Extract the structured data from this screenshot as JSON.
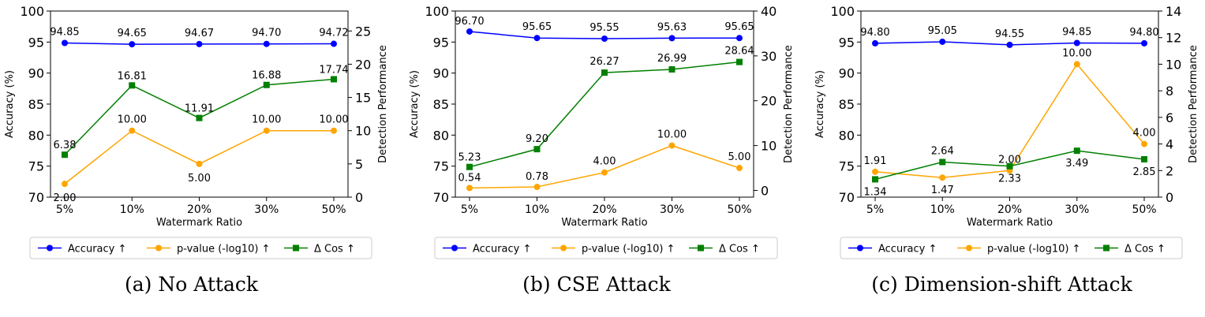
{
  "colors": {
    "accuracy": "#0000ff",
    "pvalue": "#ffa500",
    "cos": "#008000"
  },
  "chart_data": [
    {
      "type": "line",
      "caption": "(a) No Attack",
      "categories": [
        "5%",
        "10%",
        "20%",
        "30%",
        "50%"
      ],
      "xlabel": "Watermark Ratio",
      "ylabel": "Accuracy (%)",
      "y2label": "Detection Performance",
      "ylim": [
        70,
        100
      ],
      "yticks": [
        "70",
        "75",
        "80",
        "85",
        "90",
        "95",
        "100"
      ],
      "y2lim": [
        0,
        28
      ],
      "y2ticks": [
        "0",
        "5",
        "10",
        "15",
        "20",
        "25"
      ],
      "series": [
        {
          "name": "Accuracy ↑",
          "axis": "left",
          "marker": "circle",
          "values": [
            94.85,
            94.65,
            94.67,
            94.7,
            94.72
          ],
          "labels": [
            "94.85",
            "94.65",
            "94.67",
            "94.70",
            "94.72"
          ]
        },
        {
          "name": "p-value (-log10) ↑",
          "axis": "right",
          "marker": "circle",
          "values": [
            2.0,
            10.0,
            5.0,
            10.0,
            10.0
          ],
          "labels": [
            "2.00",
            "10.00",
            "5.00",
            "10.00",
            "10.00"
          ]
        },
        {
          "name": "Δ Cos ↑",
          "axis": "right",
          "marker": "square",
          "values": [
            6.38,
            16.81,
            11.91,
            16.88,
            17.74
          ],
          "labels": [
            "6.38",
            "16.81",
            "11.91",
            "16.88",
            "17.74"
          ]
        }
      ]
    },
    {
      "type": "line",
      "caption": "(b) CSE Attack",
      "categories": [
        "5%",
        "10%",
        "20%",
        "30%",
        "50%"
      ],
      "xlabel": "Watermark Ratio",
      "ylabel": "Accuracy (%)",
      "y2label": "Detection Performance",
      "ylim": [
        70,
        100
      ],
      "yticks": [
        "70",
        "75",
        "80",
        "85",
        "90",
        "95",
        "100"
      ],
      "y2lim": [
        -1.5,
        40
      ],
      "y2ticks": [
        "0",
        "10",
        "20",
        "30",
        "40"
      ],
      "series": [
        {
          "name": "Accuracy ↑",
          "axis": "left",
          "marker": "circle",
          "values": [
            96.7,
            95.65,
            95.55,
            95.63,
            95.65
          ],
          "labels": [
            "96.70",
            "95.65",
            "95.55",
            "95.63",
            "95.65"
          ]
        },
        {
          "name": "p-value (-log10) ↑",
          "axis": "right",
          "marker": "circle",
          "values": [
            0.54,
            0.78,
            4.0,
            10.0,
            5.0
          ],
          "labels": [
            "0.54",
            "0.78",
            "4.00",
            "10.00",
            "5.00"
          ]
        },
        {
          "name": "Δ Cos ↑",
          "axis": "right",
          "marker": "square",
          "values": [
            5.23,
            9.2,
            26.27,
            26.99,
            28.64
          ],
          "labels": [
            "5.23",
            "9.20",
            "26.27",
            "26.99",
            "28.64"
          ]
        }
      ]
    },
    {
      "type": "line",
      "caption": "(c) Dimension-shift Attack",
      "categories": [
        "5%",
        "10%",
        "20%",
        "30%",
        "50%"
      ],
      "xlabel": "Watermark Ratio",
      "ylabel": "Accuracy (%)",
      "y2label": "Detection Performance",
      "ylim": [
        70,
        100
      ],
      "yticks": [
        "70",
        "75",
        "80",
        "85",
        "90",
        "95",
        "100"
      ],
      "y2lim": [
        0,
        14
      ],
      "y2ticks": [
        "0",
        "2",
        "4",
        "6",
        "8",
        "10",
        "12",
        "14"
      ],
      "series": [
        {
          "name": "Accuracy ↑",
          "axis": "left",
          "marker": "circle",
          "values": [
            94.8,
            95.05,
            94.55,
            94.85,
            94.8
          ],
          "labels": [
            "94.80",
            "95.05",
            "94.55",
            "94.85",
            "94.80"
          ]
        },
        {
          "name": "p-value (-log10) ↑",
          "axis": "right",
          "marker": "circle",
          "values": [
            1.91,
            1.47,
            2.0,
            10.0,
            4.0
          ],
          "labels": [
            "1.91",
            "1.47",
            "2.00",
            "10.00",
            "4.00"
          ]
        },
        {
          "name": "Δ Cos ↑",
          "axis": "right",
          "marker": "square",
          "values": [
            1.34,
            2.64,
            2.33,
            3.49,
            2.85
          ],
          "labels": [
            "1.34",
            "2.64",
            "2.33",
            "3.49",
            "2.85"
          ]
        }
      ]
    }
  ]
}
